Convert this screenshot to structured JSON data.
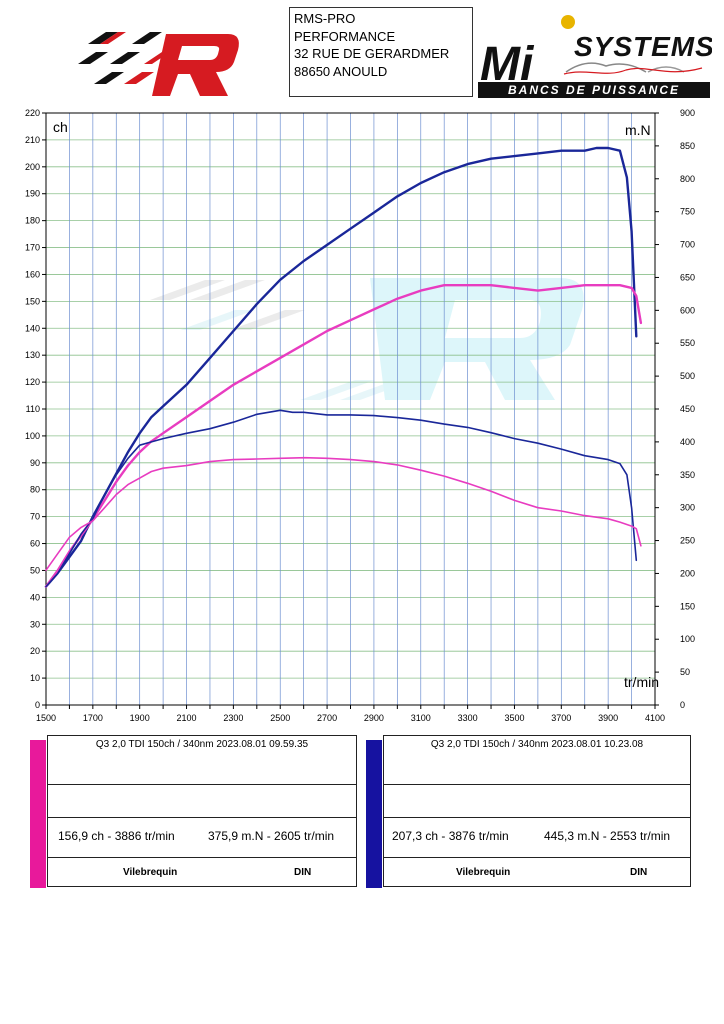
{
  "header": {
    "address_lines": [
      "RMS-PRO",
      "PERFORMANCE",
      "32 RUE DE GERARDMER",
      "88650 ANOULD"
    ],
    "logo_right_text": "SYSTEMS",
    "logo_right_letters": "Mi",
    "logo_right_tagline": "BANCS DE PUISSANCE"
  },
  "chart_data": {
    "type": "line",
    "x_tick_labels": [
      "1500",
      "1700",
      "1900",
      "2100",
      "2300",
      "2500",
      "2700",
      "2900",
      "3100",
      "3300",
      "3500",
      "3700",
      "3900",
      "4100"
    ],
    "xlim": [
      1500,
      4100
    ],
    "ylim_left": [
      0,
      220
    ],
    "ylim_right": [
      0,
      900
    ],
    "y_left_unit": "ch",
    "y_right_unit": "m.N",
    "x_unit": "tr/min",
    "grid": true,
    "series": [
      {
        "axis": "left",
        "color": "#1a2799",
        "x": [
          1500,
          1550,
          1600,
          1650,
          1700,
          1750,
          1800,
          1850,
          1900,
          1950,
          2000,
          2100,
          2200,
          2300,
          2400,
          2500,
          2600,
          2700,
          2800,
          2900,
          3000,
          3100,
          3200,
          3300,
          3400,
          3500,
          3600,
          3700,
          3800,
          3850,
          3886,
          3900,
          3950,
          3980,
          4000,
          4020
        ],
        "y": [
          44,
          49,
          55,
          61,
          70,
          78,
          86,
          94,
          101,
          107,
          111,
          119,
          129,
          139,
          149,
          158,
          165,
          171,
          177,
          183,
          189,
          194,
          198,
          201,
          203,
          204,
          205,
          206,
          206,
          207,
          207,
          207,
          206,
          196,
          176,
          137
        ]
      },
      {
        "axis": "left",
        "color": "#e83cc0",
        "x": [
          1500,
          1550,
          1600,
          1650,
          1700,
          1750,
          1800,
          1850,
          1900,
          1950,
          2000,
          2100,
          2200,
          2300,
          2400,
          2500,
          2600,
          2700,
          2800,
          2900,
          3000,
          3100,
          3200,
          3300,
          3400,
          3500,
          3600,
          3700,
          3800,
          3900,
          3950,
          4000,
          4020,
          4040
        ],
        "y": [
          44,
          50,
          57,
          63,
          69,
          76,
          83,
          89,
          94,
          98,
          101,
          107,
          113,
          119,
          124,
          129,
          134,
          139,
          143,
          147,
          151,
          154,
          156,
          156,
          156,
          155,
          154,
          155,
          156,
          156,
          156,
          155,
          152,
          142
        ]
      },
      {
        "axis": "right",
        "color": "#1a2799",
        "x": [
          1500,
          1550,
          1600,
          1650,
          1700,
          1750,
          1800,
          1850,
          1900,
          1950,
          2000,
          2100,
          2200,
          2300,
          2400,
          2500,
          2553,
          2600,
          2700,
          2800,
          2900,
          3000,
          3100,
          3200,
          3300,
          3400,
          3500,
          3600,
          3700,
          3800,
          3900,
          3950,
          3980,
          4000,
          4020
        ],
        "y": [
          180,
          200,
          230,
          260,
          283,
          320,
          350,
          375,
          395,
          400,
          405,
          413,
          420,
          430,
          442,
          448,
          445,
          445,
          441,
          441,
          440,
          437,
          433,
          427,
          422,
          414,
          405,
          398,
          389,
          379,
          373,
          367,
          350,
          300,
          220
        ]
      },
      {
        "axis": "right",
        "color": "#e83cc0",
        "x": [
          1500,
          1550,
          1600,
          1650,
          1700,
          1750,
          1800,
          1850,
          1900,
          1950,
          2000,
          2100,
          2200,
          2300,
          2400,
          2500,
          2605,
          2700,
          2800,
          2900,
          3000,
          3100,
          3200,
          3300,
          3400,
          3500,
          3600,
          3700,
          3800,
          3900,
          3950,
          4000,
          4020,
          4040
        ],
        "y": [
          205,
          230,
          255,
          270,
          280,
          300,
          320,
          335,
          345,
          355,
          360,
          364,
          370,
          373,
          374,
          375,
          376,
          375,
          373,
          370,
          365,
          357,
          348,
          337,
          325,
          311,
          300,
          295,
          288,
          283,
          278,
          272,
          268,
          242
        ]
      }
    ]
  },
  "panels": [
    {
      "color": "#e8199b",
      "title": "Q3 2,0 TDI 150ch / 340nm   2023.08.01 09.59.35",
      "power": "156,9 ch - 3886 tr/min",
      "torque": "375,9 m.N - 2605 tr/min",
      "label_left": "Vilebrequin",
      "label_right": "DIN"
    },
    {
      "color": "#1612a0",
      "title": "Q3 2,0 TDI 150ch / 340nm   2023.08.01 10.23.08",
      "power": "207,3 ch - 3876 tr/min",
      "torque": "445,3 m.N - 2553 tr/min",
      "label_left": "Vilebrequin",
      "label_right": "DIN"
    }
  ]
}
